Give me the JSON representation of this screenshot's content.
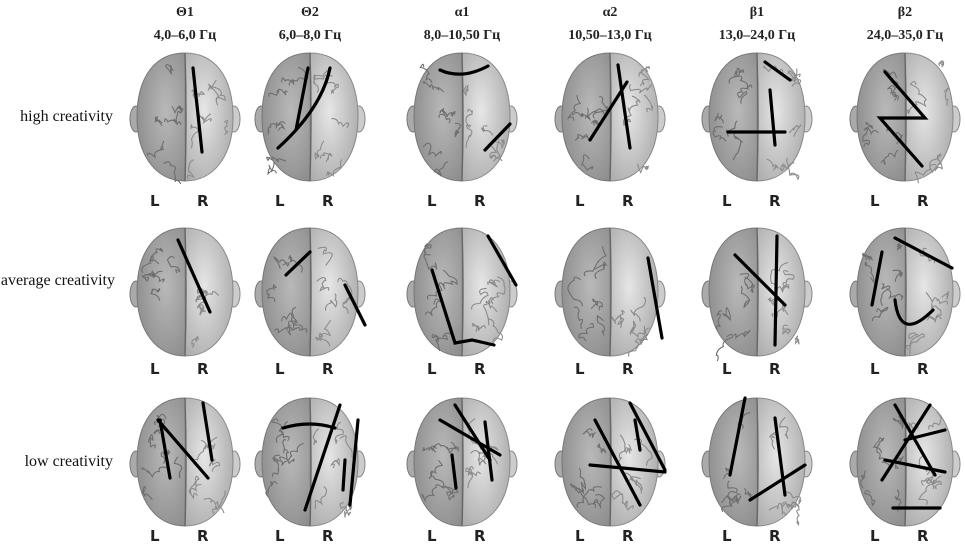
{
  "columns": [
    {
      "band": "Θ1",
      "range": "4,0–6,0 Гц"
    },
    {
      "band": "Θ2",
      "range": "6,0–8,0 Гц"
    },
    {
      "band": "α1",
      "range": "8,0–10,50 Гц"
    },
    {
      "band": "α2",
      "range": "10,50–13,0 Гц"
    },
    {
      "band": "β1",
      "range": "13,0–24,0 Гц"
    },
    {
      "band": "β2",
      "range": "24,0–35,0 Гц"
    }
  ],
  "rows": [
    {
      "label": "high creativity",
      "cells": [
        [
          "L",
          "R"
        ],
        [
          "L",
          "R"
        ],
        [
          "L",
          "R"
        ],
        [
          "L",
          "R"
        ],
        [
          "L",
          "R"
        ],
        [
          "L",
          "R"
        ]
      ]
    },
    {
      "label": "average creativity",
      "cells": [
        [
          "L",
          "R"
        ],
        [
          "L",
          "R"
        ],
        [
          "L",
          "R"
        ],
        [
          "L",
          "R"
        ],
        [
          "L",
          "R"
        ],
        [
          "L",
          "R"
        ]
      ]
    },
    {
      "label": "low creativity",
      "cells": [
        [
          "L",
          "R"
        ],
        [
          "L",
          "R"
        ],
        [
          "L",
          "R"
        ],
        [
          "L",
          "R"
        ],
        [
          "L",
          "R"
        ],
        [
          "L",
          "R"
        ]
      ]
    }
  ]
}
